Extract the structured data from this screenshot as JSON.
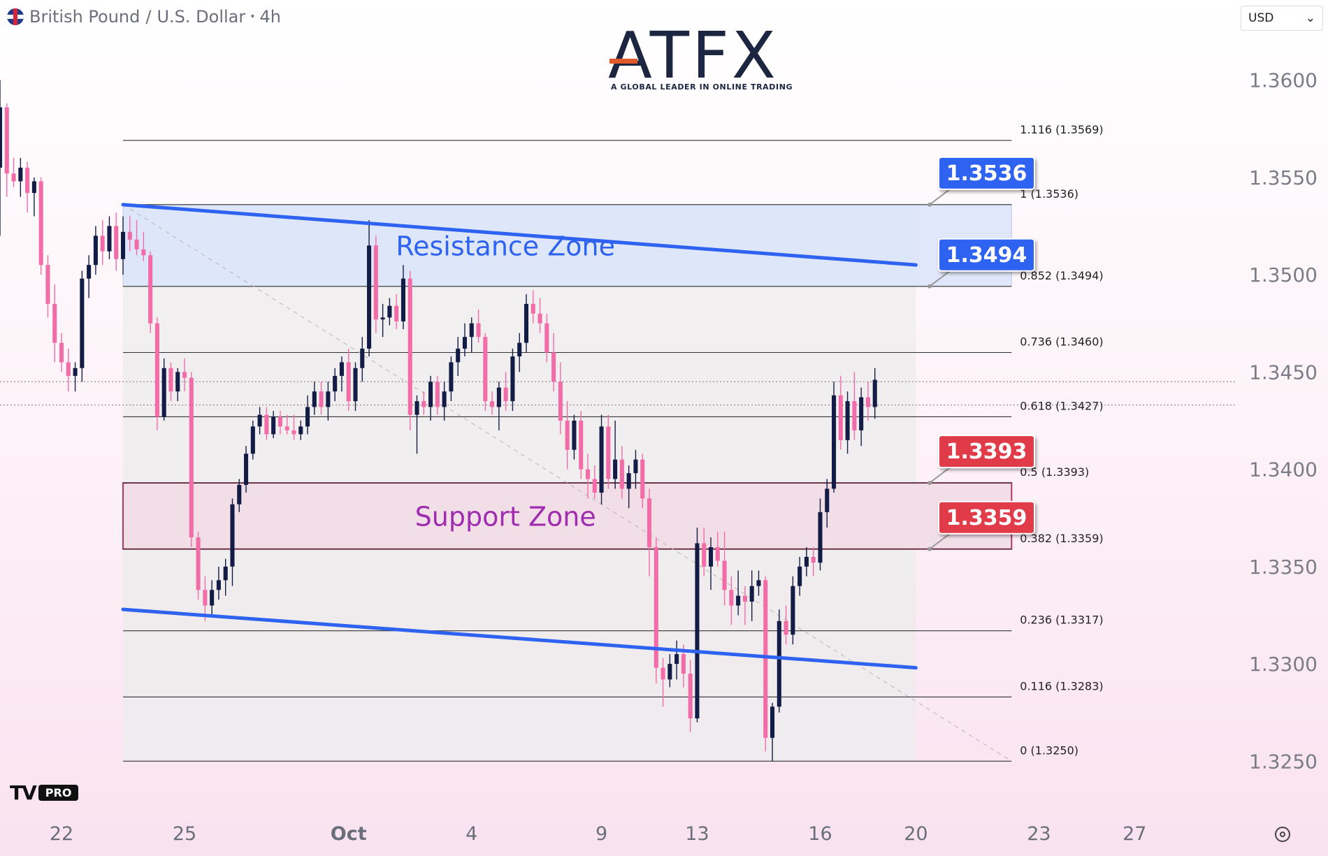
{
  "header": {
    "symbol": "British Pound",
    "separator": "/",
    "quote": "U.S. Dollar",
    "dot": "•",
    "interval": "4h"
  },
  "currency_selector": {
    "value": "USD",
    "caret": "⌄"
  },
  "logo": {
    "name": "ATFX",
    "tagline": "A GLOBAL LEADER IN ONLINE TRADING",
    "bar_color": "#e05a2b"
  },
  "branding": {
    "mark": "TV",
    "pro": "PRO"
  },
  "colors": {
    "up": "#131c45",
    "down": "#f26ca8",
    "channel": "#2e62f0",
    "resistance_fill": "#dde6fb",
    "support_fill": "#f2dde6",
    "support_border": "#a3244b",
    "fib_fill": "#ececec",
    "badge_blue": "#2e62f0",
    "badge_red": "#e13b48"
  },
  "chart_data": {
    "type": "candlestick",
    "symbol": "GBP/USD",
    "timeframe": "4h",
    "ylim": [
      1.323,
      1.3625
    ],
    "y_ticks": [
      "1.3250",
      "1.3300",
      "1.3350",
      "1.3400",
      "1.3450",
      "1.3500",
      "1.3550",
      "1.3600"
    ],
    "x_ticks": [
      {
        "label": "22",
        "index": -9
      },
      {
        "label": "25",
        "index": 9
      },
      {
        "label": "Oct",
        "index": 33
      },
      {
        "label": "4",
        "index": 51
      },
      {
        "label": "9",
        "index": 70
      },
      {
        "label": "13",
        "index": 84
      },
      {
        "label": "16",
        "index": 102
      },
      {
        "label": "20",
        "index": 116
      },
      {
        "label": "23",
        "index": 134
      },
      {
        "label": "27",
        "index": 148
      }
    ],
    "index_range": [
      -18,
      163
    ],
    "candles": [
      [
        -18,
        1.3555,
        1.36,
        1.352,
        1.3586
      ],
      [
        -17,
        1.3586,
        1.3588,
        1.354,
        1.3552
      ],
      [
        -16,
        1.3552,
        1.356,
        1.3545,
        1.3548
      ],
      [
        -15,
        1.3548,
        1.356,
        1.354,
        1.3555
      ],
      [
        -14,
        1.3555,
        1.3558,
        1.3532,
        1.3542
      ],
      [
        -13,
        1.3542,
        1.355,
        1.353,
        1.3548
      ],
      [
        -12,
        1.3548,
        1.355,
        1.35,
        1.3505
      ],
      [
        -11,
        1.3505,
        1.351,
        1.3478,
        1.3485
      ],
      [
        -10,
        1.3485,
        1.3495,
        1.3455,
        1.3465
      ],
      [
        -9,
        1.3465,
        1.347,
        1.345,
        1.3455
      ],
      [
        -8,
        1.3455,
        1.3462,
        1.344,
        1.3448
      ],
      [
        -7,
        1.3448,
        1.3455,
        1.344,
        1.3452
      ],
      [
        -6,
        1.3452,
        1.3502,
        1.3445,
        1.3498
      ],
      [
        -5,
        1.3498,
        1.351,
        1.3488,
        1.3505
      ],
      [
        -4,
        1.3505,
        1.3525,
        1.35,
        1.352
      ],
      [
        -3,
        1.352,
        1.3528,
        1.3505,
        1.3512
      ],
      [
        -2,
        1.3512,
        1.353,
        1.3508,
        1.3525
      ],
      [
        -1,
        1.3525,
        1.3532,
        1.3502,
        1.3508
      ],
      [
        0,
        1.3508,
        1.353,
        1.35,
        1.3522
      ],
      [
        1,
        1.3522,
        1.353,
        1.3512,
        1.3518
      ],
      [
        2,
        1.3518,
        1.3528,
        1.351,
        1.3513
      ],
      [
        3,
        1.3513,
        1.3522,
        1.3507,
        1.351
      ],
      [
        4,
        1.351,
        1.3512,
        1.347,
        1.3475
      ],
      [
        5,
        1.3475,
        1.3478,
        1.342,
        1.3427
      ],
      [
        6,
        1.3427,
        1.3457,
        1.3425,
        1.3452
      ],
      [
        7,
        1.3452,
        1.3455,
        1.3435,
        1.344
      ],
      [
        8,
        1.344,
        1.3452,
        1.3435,
        1.345
      ],
      [
        9,
        1.345,
        1.3457,
        1.344,
        1.3447
      ],
      [
        10,
        1.3447,
        1.345,
        1.336,
        1.3365
      ],
      [
        11,
        1.3365,
        1.3368,
        1.3333,
        1.3338
      ],
      [
        12,
        1.3338,
        1.3345,
        1.3322,
        1.333
      ],
      [
        13,
        1.333,
        1.3343,
        1.3325,
        1.3338
      ],
      [
        14,
        1.3338,
        1.335,
        1.3333,
        1.3343
      ],
      [
        15,
        1.3343,
        1.3354,
        1.3335,
        1.335
      ],
      [
        16,
        1.335,
        1.3385,
        1.334,
        1.3382
      ],
      [
        17,
        1.3382,
        1.3395,
        1.3378,
        1.3392
      ],
      [
        18,
        1.3392,
        1.3412,
        1.3388,
        1.3408
      ],
      [
        19,
        1.3408,
        1.3425,
        1.3405,
        1.3422
      ],
      [
        20,
        1.3422,
        1.3432,
        1.3418,
        1.3428
      ],
      [
        21,
        1.3428,
        1.3432,
        1.3415,
        1.3418
      ],
      [
        22,
        1.3418,
        1.343,
        1.3416,
        1.3427
      ],
      [
        23,
        1.3427,
        1.343,
        1.3418,
        1.3422
      ],
      [
        24,
        1.3422,
        1.3428,
        1.3418,
        1.342
      ],
      [
        25,
        1.342,
        1.3428,
        1.3415,
        1.3418
      ],
      [
        26,
        1.3418,
        1.3425,
        1.3415,
        1.3422
      ],
      [
        27,
        1.3422,
        1.3438,
        1.3418,
        1.3432
      ],
      [
        28,
        1.3432,
        1.3445,
        1.3428,
        1.344
      ],
      [
        29,
        1.344,
        1.3445,
        1.3428,
        1.3432
      ],
      [
        30,
        1.3432,
        1.3445,
        1.3425,
        1.344
      ],
      [
        31,
        1.344,
        1.3452,
        1.3435,
        1.3448
      ],
      [
        32,
        1.3448,
        1.3458,
        1.344,
        1.3455
      ],
      [
        33,
        1.3455,
        1.3462,
        1.343,
        1.3435
      ],
      [
        34,
        1.3435,
        1.3455,
        1.343,
        1.3452
      ],
      [
        35,
        1.3452,
        1.3468,
        1.3445,
        1.3462
      ],
      [
        36,
        1.3462,
        1.3528,
        1.3458,
        1.3515
      ],
      [
        37,
        1.3515,
        1.352,
        1.347,
        1.3477
      ],
      [
        38,
        1.3477,
        1.3485,
        1.3468,
        1.3478
      ],
      [
        39,
        1.3478,
        1.3488,
        1.3474,
        1.3484
      ],
      [
        40,
        1.3484,
        1.349,
        1.3472,
        1.3476
      ],
      [
        41,
        1.3476,
        1.3505,
        1.3472,
        1.3498
      ],
      [
        42,
        1.3498,
        1.3502,
        1.342,
        1.3428
      ],
      [
        43,
        1.3428,
        1.3438,
        1.3408,
        1.3435
      ],
      [
        44,
        1.3435,
        1.344,
        1.3428,
        1.3432
      ],
      [
        45,
        1.3432,
        1.3448,
        1.3425,
        1.3445
      ],
      [
        46,
        1.3445,
        1.3448,
        1.3428,
        1.3432
      ],
      [
        47,
        1.3432,
        1.3445,
        1.3425,
        1.344
      ],
      [
        48,
        1.344,
        1.3458,
        1.3435,
        1.3455
      ],
      [
        49,
        1.3455,
        1.3468,
        1.3448,
        1.3462
      ],
      [
        50,
        1.3462,
        1.3475,
        1.3458,
        1.3468
      ],
      [
        51,
        1.3468,
        1.3478,
        1.346,
        1.3475
      ],
      [
        52,
        1.3475,
        1.3482,
        1.3465,
        1.3468
      ],
      [
        53,
        1.3468,
        1.347,
        1.343,
        1.3435
      ],
      [
        54,
        1.3435,
        1.344,
        1.3428,
        1.3432
      ],
      [
        55,
        1.3432,
        1.3445,
        1.342,
        1.3442
      ],
      [
        56,
        1.3442,
        1.345,
        1.343,
        1.3435
      ],
      [
        57,
        1.3435,
        1.3462,
        1.343,
        1.3458
      ],
      [
        58,
        1.3458,
        1.347,
        1.345,
        1.3465
      ],
      [
        59,
        1.3465,
        1.349,
        1.346,
        1.3485
      ],
      [
        60,
        1.3485,
        1.3492,
        1.3475,
        1.348
      ],
      [
        61,
        1.348,
        1.3488,
        1.347,
        1.3475
      ],
      [
        62,
        1.3475,
        1.348,
        1.3455,
        1.346
      ],
      [
        63,
        1.346,
        1.347,
        1.344,
        1.3445
      ],
      [
        64,
        1.3445,
        1.3455,
        1.3418,
        1.3425
      ],
      [
        65,
        1.3425,
        1.3435,
        1.34,
        1.341
      ],
      [
        66,
        1.341,
        1.3428,
        1.3405,
        1.3425
      ],
      [
        67,
        1.3425,
        1.343,
        1.3395,
        1.34
      ],
      [
        68,
        1.34,
        1.3408,
        1.3385,
        1.3395
      ],
      [
        69,
        1.3395,
        1.3402,
        1.3385,
        1.3388
      ],
      [
        70,
        1.3388,
        1.3428,
        1.3382,
        1.3422
      ],
      [
        71,
        1.3422,
        1.3428,
        1.339,
        1.3395
      ],
      [
        72,
        1.3395,
        1.3425,
        1.339,
        1.3405
      ],
      [
        73,
        1.3405,
        1.3412,
        1.3385,
        1.339
      ],
      [
        74,
        1.339,
        1.3402,
        1.338,
        1.3398
      ],
      [
        75,
        1.3398,
        1.341,
        1.339,
        1.3405
      ],
      [
        76,
        1.3405,
        1.3408,
        1.338,
        1.3385
      ],
      [
        77,
        1.3385,
        1.339,
        1.3345,
        1.336
      ],
      [
        78,
        1.336,
        1.3365,
        1.329,
        1.3298
      ],
      [
        79,
        1.3298,
        1.3303,
        1.3278,
        1.3292
      ],
      [
        80,
        1.3292,
        1.3305,
        1.3288,
        1.33
      ],
      [
        81,
        1.33,
        1.3312,
        1.3292,
        1.3305
      ],
      [
        82,
        1.3305,
        1.331,
        1.3288,
        1.3295
      ],
      [
        83,
        1.3295,
        1.3302,
        1.3265,
        1.3272
      ],
      [
        84,
        1.3272,
        1.337,
        1.327,
        1.3362
      ],
      [
        85,
        1.3362,
        1.337,
        1.3345,
        1.335
      ],
      [
        86,
        1.335,
        1.3365,
        1.3338,
        1.336
      ],
      [
        87,
        1.336,
        1.3368,
        1.335,
        1.3353
      ],
      [
        88,
        1.3353,
        1.3368,
        1.333,
        1.3338
      ],
      [
        89,
        1.3338,
        1.3345,
        1.332,
        1.333
      ],
      [
        90,
        1.333,
        1.3348,
        1.3325,
        1.3335
      ],
      [
        91,
        1.3335,
        1.334,
        1.332,
        1.3332
      ],
      [
        92,
        1.3332,
        1.3348,
        1.3322,
        1.334
      ],
      [
        93,
        1.334,
        1.3348,
        1.3335,
        1.3343
      ],
      [
        94,
        1.3343,
        1.3345,
        1.3255,
        1.3262
      ],
      [
        95,
        1.3262,
        1.328,
        1.325,
        1.3278
      ],
      [
        96,
        1.3278,
        1.3328,
        1.3275,
        1.3322
      ],
      [
        97,
        1.3322,
        1.333,
        1.331,
        1.3315
      ],
      [
        98,
        1.3315,
        1.3345,
        1.331,
        1.334
      ],
      [
        99,
        1.334,
        1.3355,
        1.3335,
        1.335
      ],
      [
        100,
        1.335,
        1.336,
        1.3345,
        1.3355
      ],
      [
        101,
        1.3355,
        1.336,
        1.3345,
        1.3352
      ],
      [
        102,
        1.3352,
        1.3385,
        1.3348,
        1.3378
      ],
      [
        103,
        1.3378,
        1.3395,
        1.337,
        1.339
      ],
      [
        104,
        1.339,
        1.3445,
        1.3388,
        1.3438
      ],
      [
        105,
        1.3438,
        1.3448,
        1.341,
        1.3415
      ],
      [
        106,
        1.3415,
        1.344,
        1.3408,
        1.3435
      ],
      [
        107,
        1.3435,
        1.345,
        1.3415,
        1.342
      ],
      [
        108,
        1.342,
        1.3442,
        1.3412,
        1.3437
      ],
      [
        109,
        1.3437,
        1.3445,
        1.3425,
        1.3432
      ],
      [
        110,
        1.3432,
        1.3452,
        1.3426,
        1.3446
      ]
    ],
    "fib_levels": [
      {
        "label": "1.116 (1.3569)",
        "price": 1.3569
      },
      {
        "label": "1 (1.3536)",
        "price": 1.3536
      },
      {
        "label": "0.852 (1.3494)",
        "price": 1.3494
      },
      {
        "label": "0.736 (1.3460)",
        "price": 1.346
      },
      {
        "label": "0.618 (1.3427)",
        "price": 1.3427
      },
      {
        "label": "0.5 (1.3393)",
        "price": 1.3393
      },
      {
        "label": "0.382 (1.3359)",
        "price": 1.3359
      },
      {
        "label": "0.236 (1.3317)",
        "price": 1.3317
      },
      {
        "label": "0.116 (1.3283)",
        "price": 1.3283
      },
      {
        "label": "0 (1.3250)",
        "price": 1.325
      }
    ],
    "fib_index_range": [
      0,
      130
    ],
    "fib_shade_index_end": 116,
    "zones": [
      {
        "name": "Resistance Zone",
        "from": 1.3494,
        "to": 1.3536,
        "index_range": [
          0,
          130
        ]
      },
      {
        "name": "Support Zone",
        "from": 1.3359,
        "to": 1.3393,
        "index_range": [
          0,
          130
        ]
      }
    ],
    "channel": {
      "upper": [
        [
          0,
          1.3536
        ],
        [
          116,
          1.3505
        ]
      ],
      "lower": [
        [
          0,
          1.3328
        ],
        [
          116,
          1.3298
        ]
      ]
    },
    "diagonal": [
      [
        0,
        1.3536
      ],
      [
        130,
        1.325
      ]
    ],
    "price_badges": [
      {
        "label": "1.3536",
        "price": 1.3536,
        "kind": "blue"
      },
      {
        "label": "1.3494",
        "price": 1.3494,
        "kind": "blue"
      },
      {
        "label": "1.3393",
        "price": 1.3393,
        "kind": "red"
      },
      {
        "label": "1.3359",
        "price": 1.3359,
        "kind": "red"
      }
    ],
    "price_lines": [
      1.3445,
      1.3433
    ]
  }
}
